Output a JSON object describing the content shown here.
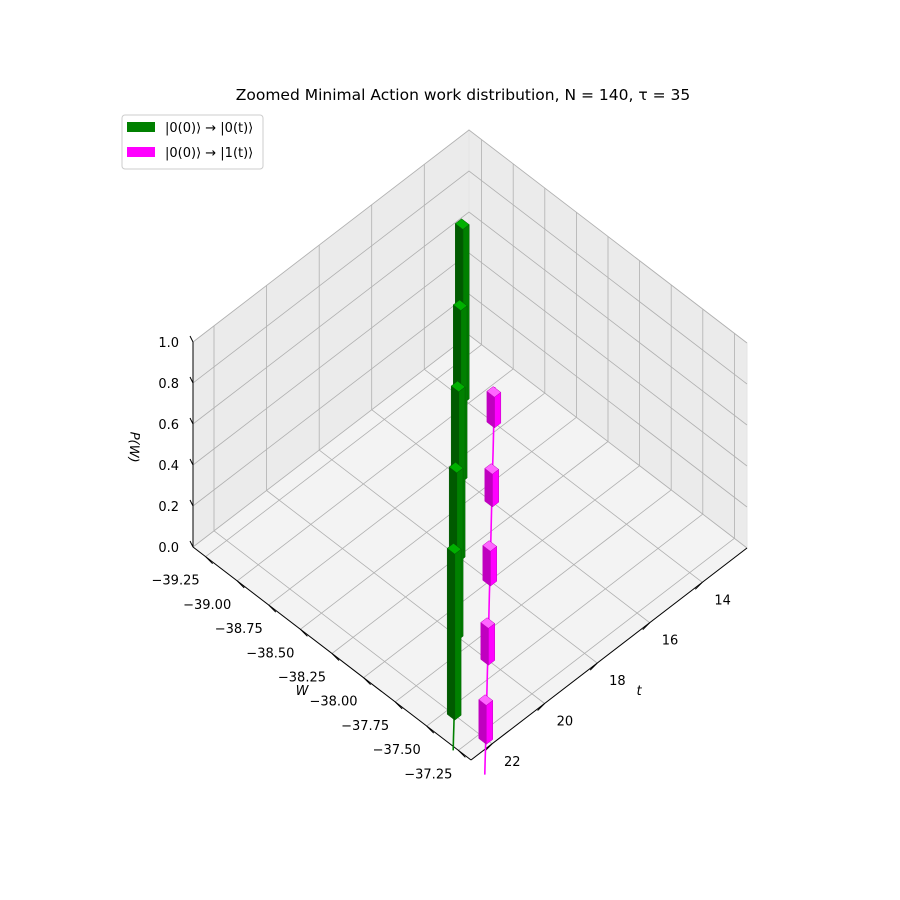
{
  "chart_data": {
    "type": "bar3d",
    "title": "Zoomed Minimal Action work distribution, N = 140, τ = 35",
    "xlabel": "W",
    "ylabel": "t",
    "zlabel": "P(W)",
    "xlim": [
      -39.35,
      -37.15
    ],
    "ylim": [
      12.3,
      22.8
    ],
    "zlim": [
      0,
      1.0
    ],
    "x_ticks": [
      "−39.25",
      "−39.00",
      "−38.75",
      "−38.50",
      "−38.25",
      "−38.00",
      "−37.75",
      "−37.50",
      "−37.25"
    ],
    "y_ticks": [
      "14",
      "16",
      "18",
      "20",
      "22"
    ],
    "z_ticks": [
      "0.0",
      "0.2",
      "0.4",
      "0.6",
      "0.8",
      "1.0"
    ],
    "grid": true,
    "legend_position": "upper-left",
    "series": [
      {
        "name": "|0(0)⟩ → |0(t)⟩",
        "color": "#008000",
        "points": [
          {
            "t": 22,
            "W": -37.45,
            "P": 0.81
          },
          {
            "t": 20,
            "W": -37.85,
            "P": 0.82
          },
          {
            "t": 18,
            "W": -38.25,
            "P": 0.83
          },
          {
            "t": 16,
            "W": -38.65,
            "P": 0.84
          },
          {
            "t": 14,
            "W": -39.05,
            "P": 0.85
          }
        ]
      },
      {
        "name": "|0(0)⟩ → |1(t)⟩",
        "color": "#ff00ff",
        "points": [
          {
            "t": 22,
            "W": -37.2,
            "P": 0.19
          },
          {
            "t": 20,
            "W": -37.6,
            "P": 0.18
          },
          {
            "t": 18,
            "W": -38.0,
            "P": 0.17
          },
          {
            "t": 16,
            "W": -38.4,
            "P": 0.16
          },
          {
            "t": 14,
            "W": -38.8,
            "P": 0.15
          }
        ]
      }
    ]
  }
}
